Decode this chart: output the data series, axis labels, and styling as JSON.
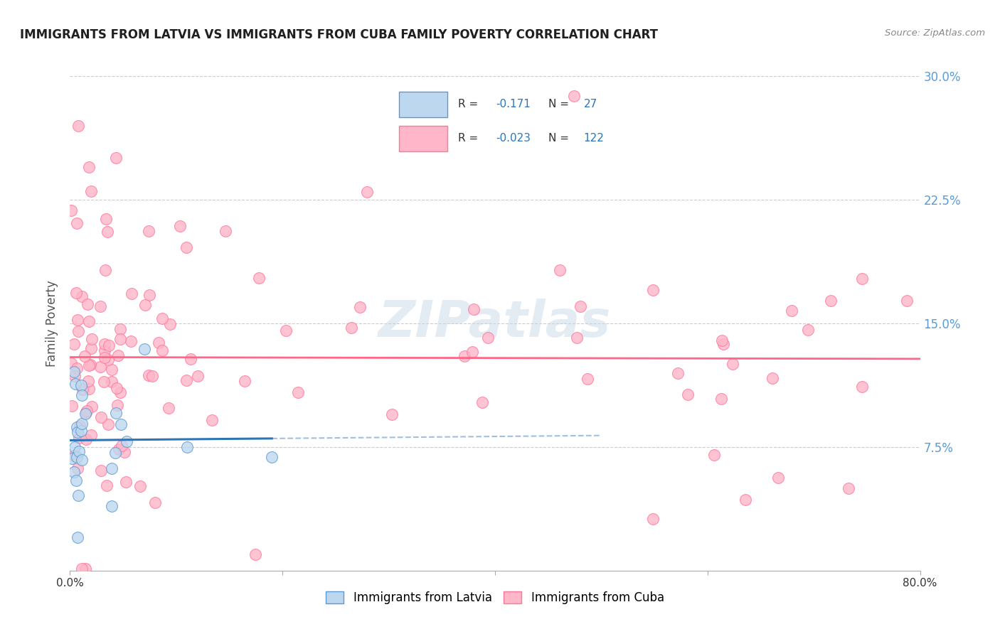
{
  "title": "IMMIGRANTS FROM LATVIA VS IMMIGRANTS FROM CUBA FAMILY POVERTY CORRELATION CHART",
  "source": "Source: ZipAtlas.com",
  "ylabel": "Family Poverty",
  "xlim": [
    0.0,
    0.8
  ],
  "ylim": [
    0.0,
    0.3
  ],
  "xtick_vals": [
    0.0,
    0.2,
    0.4,
    0.6,
    0.8
  ],
  "xtick_labels_ends": [
    "0.0%",
    "80.0%"
  ],
  "ytick_vals": [
    0.0,
    0.075,
    0.15,
    0.225,
    0.3
  ],
  "ytick_labels_right": [
    "",
    "7.5%",
    "15.0%",
    "22.5%",
    "30.0%"
  ],
  "latvia_R": -0.171,
  "latvia_N": 27,
  "cuba_R": -0.023,
  "cuba_N": 122,
  "blue_fill": "#BDD7EE",
  "blue_edge": "#5B9BD5",
  "blue_line": "#2E75B6",
  "pink_fill": "#FFB6C8",
  "pink_edge": "#FF7799",
  "pink_line": "#FF6688",
  "watermark_color": "#C8D8E8",
  "watermark_alpha": 0.5,
  "background_color": "#FFFFFF",
  "grid_color": "#CCCCCC",
  "right_tick_color": "#5B9BD5",
  "title_color": "#1F1F1F",
  "source_color": "#888888",
  "ylabel_color": "#555555"
}
